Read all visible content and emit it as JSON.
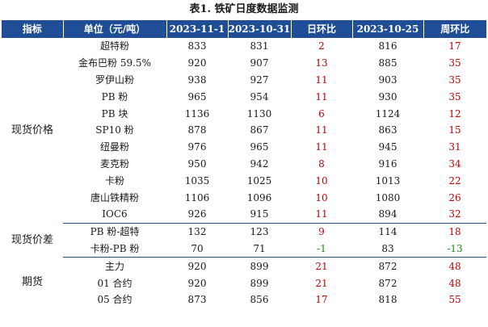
{
  "title": "表1. 铁矿日度数据监测",
  "headers": [
    "指标",
    "单位（元/吨）",
    "2023-11-1",
    "2023-10-31",
    "日环比",
    "2023-10-25",
    "周环比"
  ],
  "groups": [
    {
      "category": "现货价格",
      "rows": [
        {
          "name": "超特粉",
          "v1": "833",
          "v2": "831",
          "d": "2",
          "v3": "816",
          "w": "17"
        },
        {
          "name": "金布巴粉 59.5%",
          "v1": "920",
          "v2": "907",
          "d": "13",
          "v3": "885",
          "w": "35"
        },
        {
          "name": "罗伊山粉",
          "v1": "938",
          "v2": "927",
          "d": "11",
          "v3": "903",
          "w": "35"
        },
        {
          "name": "PB 粉",
          "v1": "965",
          "v2": "954",
          "d": "11",
          "v3": "930",
          "w": "35"
        },
        {
          "name": "PB 块",
          "v1": "1136",
          "v2": "1130",
          "d": "6",
          "v3": "1124",
          "w": "12"
        },
        {
          "name": "SP10 粉",
          "v1": "878",
          "v2": "867",
          "d": "11",
          "v3": "863",
          "w": "15"
        },
        {
          "name": "纽曼粉",
          "v1": "976",
          "v2": "965",
          "d": "11",
          "v3": "945",
          "w": "31"
        },
        {
          "name": "麦克粉",
          "v1": "950",
          "v2": "942",
          "d": "8",
          "v3": "916",
          "w": "34"
        },
        {
          "name": "卡粉",
          "v1": "1035",
          "v2": "1025",
          "d": "10",
          "v3": "1013",
          "w": "22"
        },
        {
          "name": "唐山铁精粉",
          "v1": "1106",
          "v2": "1096",
          "d": "10",
          "v3": "1080",
          "w": "26"
        },
        {
          "name": "IOC6",
          "v1": "926",
          "v2": "915",
          "d": "11",
          "v3": "894",
          "w": "32"
        }
      ]
    },
    {
      "category": "现货价差",
      "rows": [
        {
          "name": "PB 粉-超特",
          "v1": "132",
          "v2": "123",
          "d": "9",
          "v3": "114",
          "w": "18"
        },
        {
          "name": "卡粉-PB 粉",
          "v1": "70",
          "v2": "71",
          "d": "-1",
          "v3": "83",
          "w": "-13"
        }
      ]
    },
    {
      "category": "期货",
      "rows": [
        {
          "name": "主力",
          "v1": "920",
          "v2": "899",
          "d": "21",
          "v3": "872",
          "w": "48"
        },
        {
          "name": "01 合约",
          "v1": "920",
          "v2": "899",
          "d": "21",
          "v3": "872",
          "w": "48"
        },
        {
          "name": "05 合约",
          "v1": "873",
          "v2": "856",
          "d": "17",
          "v3": "818",
          "w": "55"
        }
      ]
    }
  ],
  "colors": {
    "header_bg": "#1f4e96",
    "positive": "#c00000",
    "negative": "#1f8a1f"
  }
}
